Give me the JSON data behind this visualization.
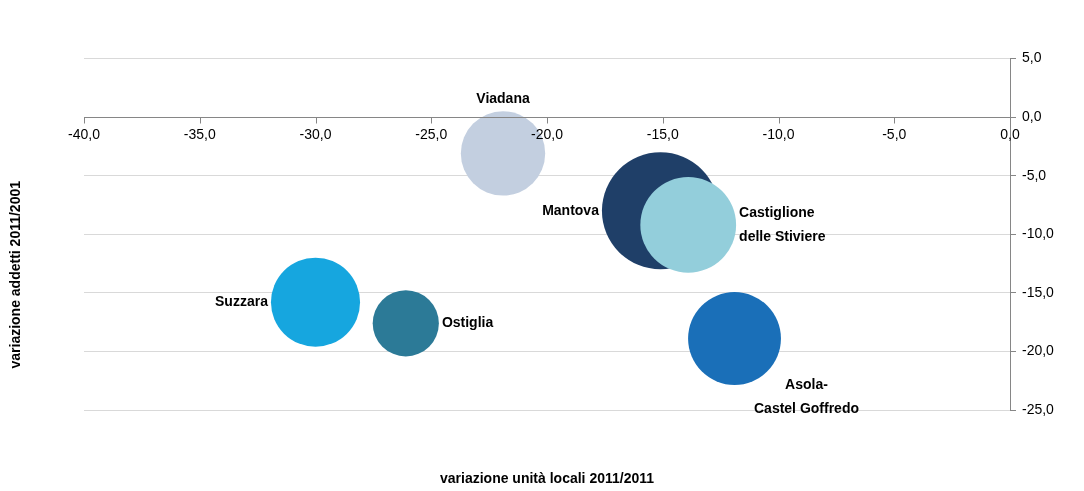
{
  "chart_data": {
    "type": "bubble",
    "xlabel": "variazione unità locali 2011/2011",
    "ylabel": "variazione addetti 2011/2001",
    "xlim": [
      -40,
      0
    ],
    "xticks": [
      {
        "value": -40,
        "label": "-40,0"
      },
      {
        "value": -35,
        "label": "-35,0"
      },
      {
        "value": -30,
        "label": "-30,0"
      },
      {
        "value": -25,
        "label": "-25,0"
      },
      {
        "value": -20,
        "label": "-20,0"
      },
      {
        "value": -15,
        "label": "-15,0"
      },
      {
        "value": -10,
        "label": "-10,0"
      },
      {
        "value": -5,
        "label": "-5,0"
      },
      {
        "value": 0,
        "label": "0,0"
      }
    ],
    "ylim": [
      -25,
      5
    ],
    "yticks": [
      {
        "value": -25,
        "label": "-25,0"
      },
      {
        "value": -20,
        "label": "-20,0"
      },
      {
        "value": -15,
        "label": "-15,0"
      },
      {
        "value": -10,
        "label": "-10,0"
      },
      {
        "value": -5,
        "label": "-5,0"
      },
      {
        "value": 0,
        "label": "0,0"
      },
      {
        "value": 5,
        "label": "5,0"
      }
    ],
    "grid": "y",
    "series": [
      {
        "name": "Viadana",
        "color": "#c3cfe0",
        "x": [
          -21.9
        ],
        "values": [
          -3.1
        ],
        "sizes": [
          0.52
        ]
      },
      {
        "name": "Mantova",
        "color": "#1f3f68",
        "x": [
          -15.1
        ],
        "values": [
          -8.0
        ],
        "sizes": [
          1
        ]
      },
      {
        "name": "Castiglione delle Stiviere",
        "color": "#93cedb",
        "x": [
          -13.9
        ],
        "values": [
          -9.2
        ],
        "sizes": [
          0.67
        ]
      },
      {
        "name": "Suzzara",
        "color": "#16a6df",
        "x": [
          -30.0
        ],
        "values": [
          -15.8
        ],
        "sizes": [
          0.58
        ]
      },
      {
        "name": "Ostiglia",
        "color": "#2c7a97",
        "x": [
          -26.1
        ],
        "values": [
          -17.6
        ],
        "sizes": [
          0.32
        ]
      },
      {
        "name": "Asola-Castel Goffredo",
        "color": "#1a6fb8",
        "x": [
          -11.9
        ],
        "values": [
          -18.9
        ],
        "sizes": [
          0.63
        ]
      }
    ]
  }
}
